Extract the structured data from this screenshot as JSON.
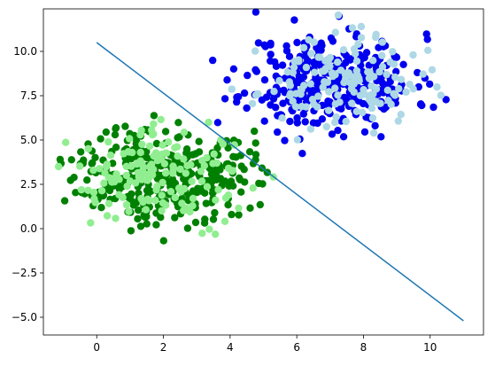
{
  "chart_data": {
    "type": "scatter",
    "title": "",
    "xlabel": "",
    "ylabel": "",
    "xlim": [
      -1.6,
      11.6
    ],
    "ylim": [
      -6.0,
      12.4
    ],
    "grid": false,
    "legend": "none",
    "x_ticks": [
      0,
      2,
      4,
      6,
      8,
      10
    ],
    "y_ticks": [
      -5.0,
      -2.5,
      0.0,
      2.5,
      5.0,
      7.5,
      10.0
    ],
    "y_tick_labels": [
      "−5.0",
      "−2.5",
      "0.0",
      "2.5",
      "5.0",
      "7.5",
      "10.0"
    ],
    "clusters": [
      {
        "color": "#0000ee",
        "cx": 7.0,
        "cy": 8.3,
        "sx": 1.25,
        "sy": 1.35,
        "n": 330,
        "seed": 11
      },
      {
        "color": "#add8e6",
        "cx": 7.3,
        "cy": 8.2,
        "sx": 1.2,
        "sy": 1.25,
        "n": 150,
        "seed": 23
      },
      {
        "color": "#008000",
        "cx": 2.0,
        "cy": 3.1,
        "sx": 1.3,
        "sy": 1.35,
        "n": 330,
        "seed": 37
      },
      {
        "color": "#90ee90",
        "cx": 1.9,
        "cy": 3.0,
        "sx": 1.3,
        "sy": 1.3,
        "n": 150,
        "seed": 41
      }
    ],
    "line": {
      "color": "#1f77b4",
      "points": [
        [
          0,
          10.5
        ],
        [
          11.0,
          -5.2
        ]
      ]
    }
  }
}
